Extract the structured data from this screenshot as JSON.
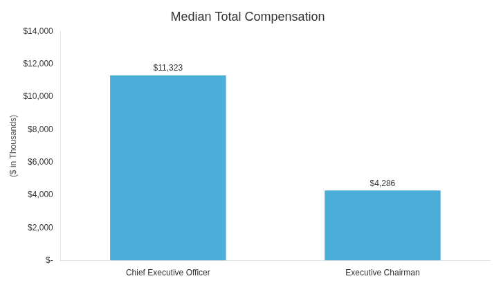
{
  "chart_data": {
    "type": "bar",
    "title": "Median Total Compensation",
    "ylabel": "($ in Thousands)",
    "categories": [
      "Chief Executive Officer",
      "Executive Chairman"
    ],
    "values": [
      11323,
      4286
    ],
    "value_labels": [
      "$11,323",
      "$4,286"
    ],
    "data_labels": true,
    "color": "#4BAED9",
    "ylim": [
      0,
      14000
    ],
    "yticks": [
      {
        "value": 0,
        "label": "$-"
      },
      {
        "value": 2000,
        "label": "$2,000"
      },
      {
        "value": 4000,
        "label": "$4,000"
      },
      {
        "value": 6000,
        "label": "$6,000"
      },
      {
        "value": 8000,
        "label": "$8,000"
      },
      {
        "value": 10000,
        "label": "$10,000"
      },
      {
        "value": 12000,
        "label": "$12,000"
      },
      {
        "value": 14000,
        "label": "$14,000"
      }
    ],
    "grid": false
  }
}
